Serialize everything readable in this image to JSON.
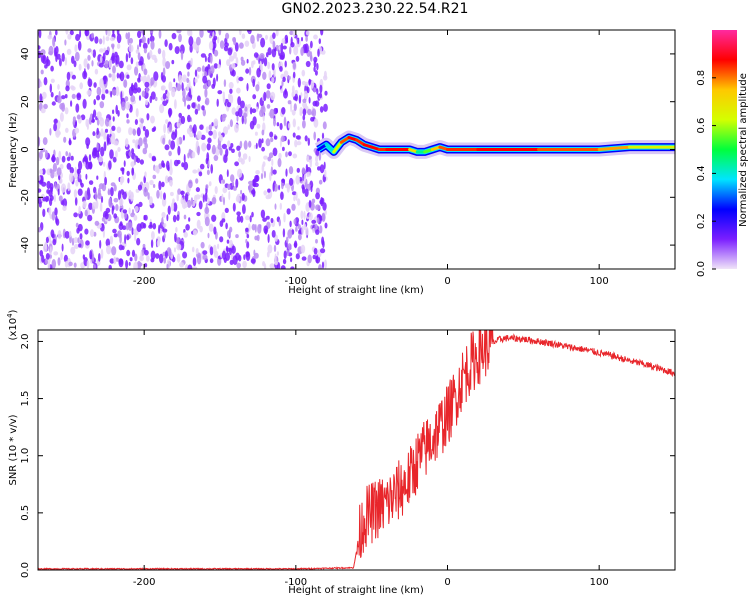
{
  "figure": {
    "title": "GN02.2023.230.22.54.R21"
  },
  "colorbar": {
    "label": "Normalized spectral amplitude",
    "ticks": [
      "0.0",
      "0.2",
      "0.4",
      "0.6",
      "0.8"
    ],
    "tick_values": [
      0.0,
      0.2,
      0.4,
      0.6,
      0.8
    ],
    "range": [
      0,
      1
    ],
    "colors": [
      "#f0e4f8",
      "#7b1fff",
      "#0000ff",
      "#00e5ff",
      "#00ff3c",
      "#d4ff00",
      "#ffc800",
      "#ff0000",
      "#ff2aa0"
    ]
  },
  "chart_data": [
    {
      "type": "heatmap",
      "xlabel": "Height of straight line (km)",
      "ylabel": "Frequency (Hz)",
      "xlim": [
        -270,
        150
      ],
      "ylim": [
        -50,
        50
      ],
      "xticks": [
        -200,
        -100,
        0,
        100
      ],
      "xtick_labels": [
        "-200",
        "-100",
        "0",
        "100"
      ],
      "yticks": [
        -40,
        -20,
        0,
        20,
        40
      ],
      "ytick_labels": [
        "-40",
        "-20",
        "0",
        "20",
        "40"
      ],
      "noise_region_x": [
        -270,
        -80
      ],
      "noise_amplitude": [
        0.0,
        0.15
      ],
      "signal_track": {
        "x": [
          -85,
          -80,
          -75,
          -70,
          -65,
          -60,
          -55,
          -50,
          -45,
          -40,
          -35,
          -30,
          -25,
          -20,
          -15,
          -10,
          -5,
          0,
          20,
          40,
          60,
          80,
          100,
          120,
          150
        ],
        "frequency": [
          0,
          2,
          -1,
          3,
          5,
          4,
          2,
          1,
          0,
          0,
          0,
          0,
          0,
          -1,
          -1,
          0,
          1,
          0,
          0,
          0,
          0,
          0,
          0,
          1,
          1
        ],
        "amplitude": [
          0.2,
          0.3,
          0.5,
          0.75,
          0.9,
          0.85,
          0.85,
          0.9,
          0.85,
          0.85,
          0.9,
          0.85,
          0.9,
          0.5,
          0.4,
          0.7,
          0.8,
          0.85,
          0.85,
          0.9,
          0.85,
          0.8,
          0.85,
          0.7,
          0.6
        ]
      },
      "grid": false
    },
    {
      "type": "line",
      "xlabel": "Height of straight line (km)",
      "ylabel": "SNR (10 * v/v)",
      "y_multiplier": "(x10",
      "y_multiplier_exp": "4",
      "xlim": [
        -270,
        150
      ],
      "ylim": [
        0,
        2.1
      ],
      "xticks": [
        -200,
        -100,
        0,
        100
      ],
      "xtick_labels": [
        "-200",
        "-100",
        "0",
        "100"
      ],
      "yticks": [
        0.0,
        0.5,
        1.0,
        1.5,
        2.0
      ],
      "ytick_labels": [
        "0.0",
        "0.5",
        "1.0",
        "1.5",
        "2.0"
      ],
      "color": "#e8262b",
      "series": [
        {
          "x": [
            -270,
            -200,
            -100,
            -62,
            -58,
            -55,
            -50,
            -45,
            -40,
            -35,
            -30,
            -25,
            -20,
            -15,
            -10,
            -5,
            0,
            5,
            10,
            15,
            20,
            25,
            30,
            35,
            40,
            50,
            60,
            70,
            80,
            90,
            100,
            110,
            120,
            130,
            140,
            150
          ],
          "y": [
            0.01,
            0.01,
            0.01,
            0.02,
            0.3,
            0.45,
            0.5,
            0.55,
            0.58,
            0.65,
            0.72,
            0.8,
            0.95,
            1.05,
            1.15,
            1.25,
            1.35,
            1.5,
            1.68,
            1.8,
            1.88,
            1.95,
            1.99,
            2.02,
            2.03,
            2.02,
            2.0,
            1.98,
            1.95,
            1.93,
            1.9,
            1.87,
            1.83,
            1.8,
            1.76,
            1.72
          ]
        }
      ],
      "grid": false
    }
  ]
}
